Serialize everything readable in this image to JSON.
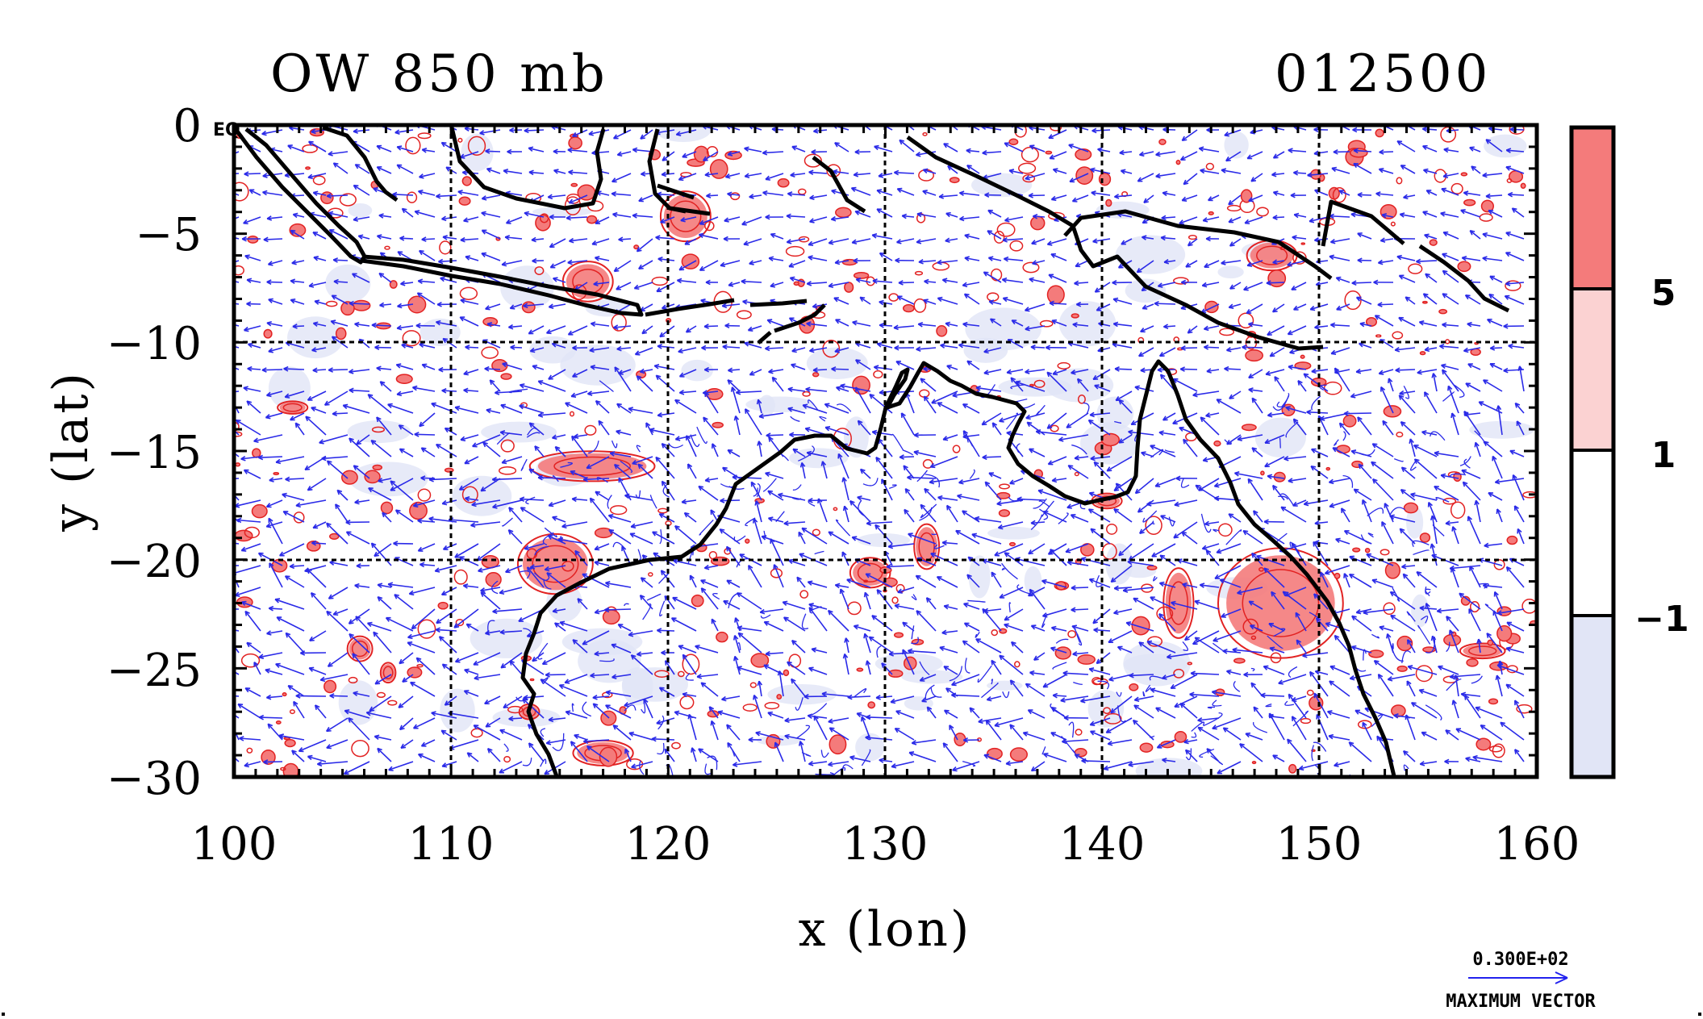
{
  "figure": {
    "title_left": "OW 850 mb",
    "title_right": "012500",
    "corner_label": "EQ"
  },
  "chart_data": {
    "type": "map",
    "xlabel": "x (lon)",
    "ylabel": "y (lat)",
    "xlim": [
      100,
      160
    ],
    "ylim": [
      -30,
      0
    ],
    "x_ticks": [
      "100",
      "110",
      "120",
      "130",
      "140",
      "150",
      "160"
    ],
    "y_ticks": [
      "0",
      "−5",
      "−10",
      "−15",
      "−20",
      "−25",
      "−30"
    ],
    "gridlines_lon": [
      110,
      120,
      130,
      140,
      150
    ],
    "gridlines_lat": [
      -10,
      -20
    ],
    "colorbar": {
      "labels": [
        "5",
        "1",
        "−1"
      ],
      "levels": [
        5,
        1,
        -1
      ],
      "colors": [
        "#f47b7b",
        "#fbd2d2",
        "#ffffff",
        "#e1e5f6"
      ]
    },
    "vector_legend": {
      "value": "0.300E+02",
      "label": "MAXIMUM VECTOR"
    },
    "filled_features": [
      {
        "lon": 114.8,
        "lat": -20.2,
        "rx": 1.5,
        "ry": 1.2
      },
      {
        "lon": 148.2,
        "lat": -22.0,
        "rx": 2.5,
        "ry": 2.2
      },
      {
        "lon": 143.5,
        "lat": -22.0,
        "rx": 0.6,
        "ry": 1.4
      },
      {
        "lon": 129.3,
        "lat": -20.6,
        "rx": 0.8,
        "ry": 0.6
      },
      {
        "lon": 131.9,
        "lat": -19.4,
        "rx": 0.5,
        "ry": 0.9
      },
      {
        "lon": 116.5,
        "lat": -15.7,
        "rx": 2.5,
        "ry": 0.6
      },
      {
        "lon": 116.3,
        "lat": -7.2,
        "rx": 1.0,
        "ry": 0.8
      },
      {
        "lon": 105.8,
        "lat": -24.1,
        "rx": 0.5,
        "ry": 0.5
      },
      {
        "lon": 107.1,
        "lat": -25.2,
        "rx": 0.3,
        "ry": 0.4
      },
      {
        "lon": 102.7,
        "lat": -13.0,
        "rx": 0.6,
        "ry": 0.25
      },
      {
        "lon": 113.6,
        "lat": -27.0,
        "rx": 0.4,
        "ry": 0.3
      },
      {
        "lon": 140.2,
        "lat": -17.3,
        "rx": 0.6,
        "ry": 0.3
      },
      {
        "lon": 117.0,
        "lat": -28.9,
        "rx": 1.2,
        "ry": 0.5
      },
      {
        "lon": 120.8,
        "lat": -4.2,
        "rx": 1.0,
        "ry": 1.0
      },
      {
        "lon": 157.5,
        "lat": -24.2,
        "rx": 0.9,
        "ry": 0.3
      },
      {
        "lon": 147.8,
        "lat": -6.0,
        "rx": 1.0,
        "ry": 0.6
      }
    ]
  }
}
